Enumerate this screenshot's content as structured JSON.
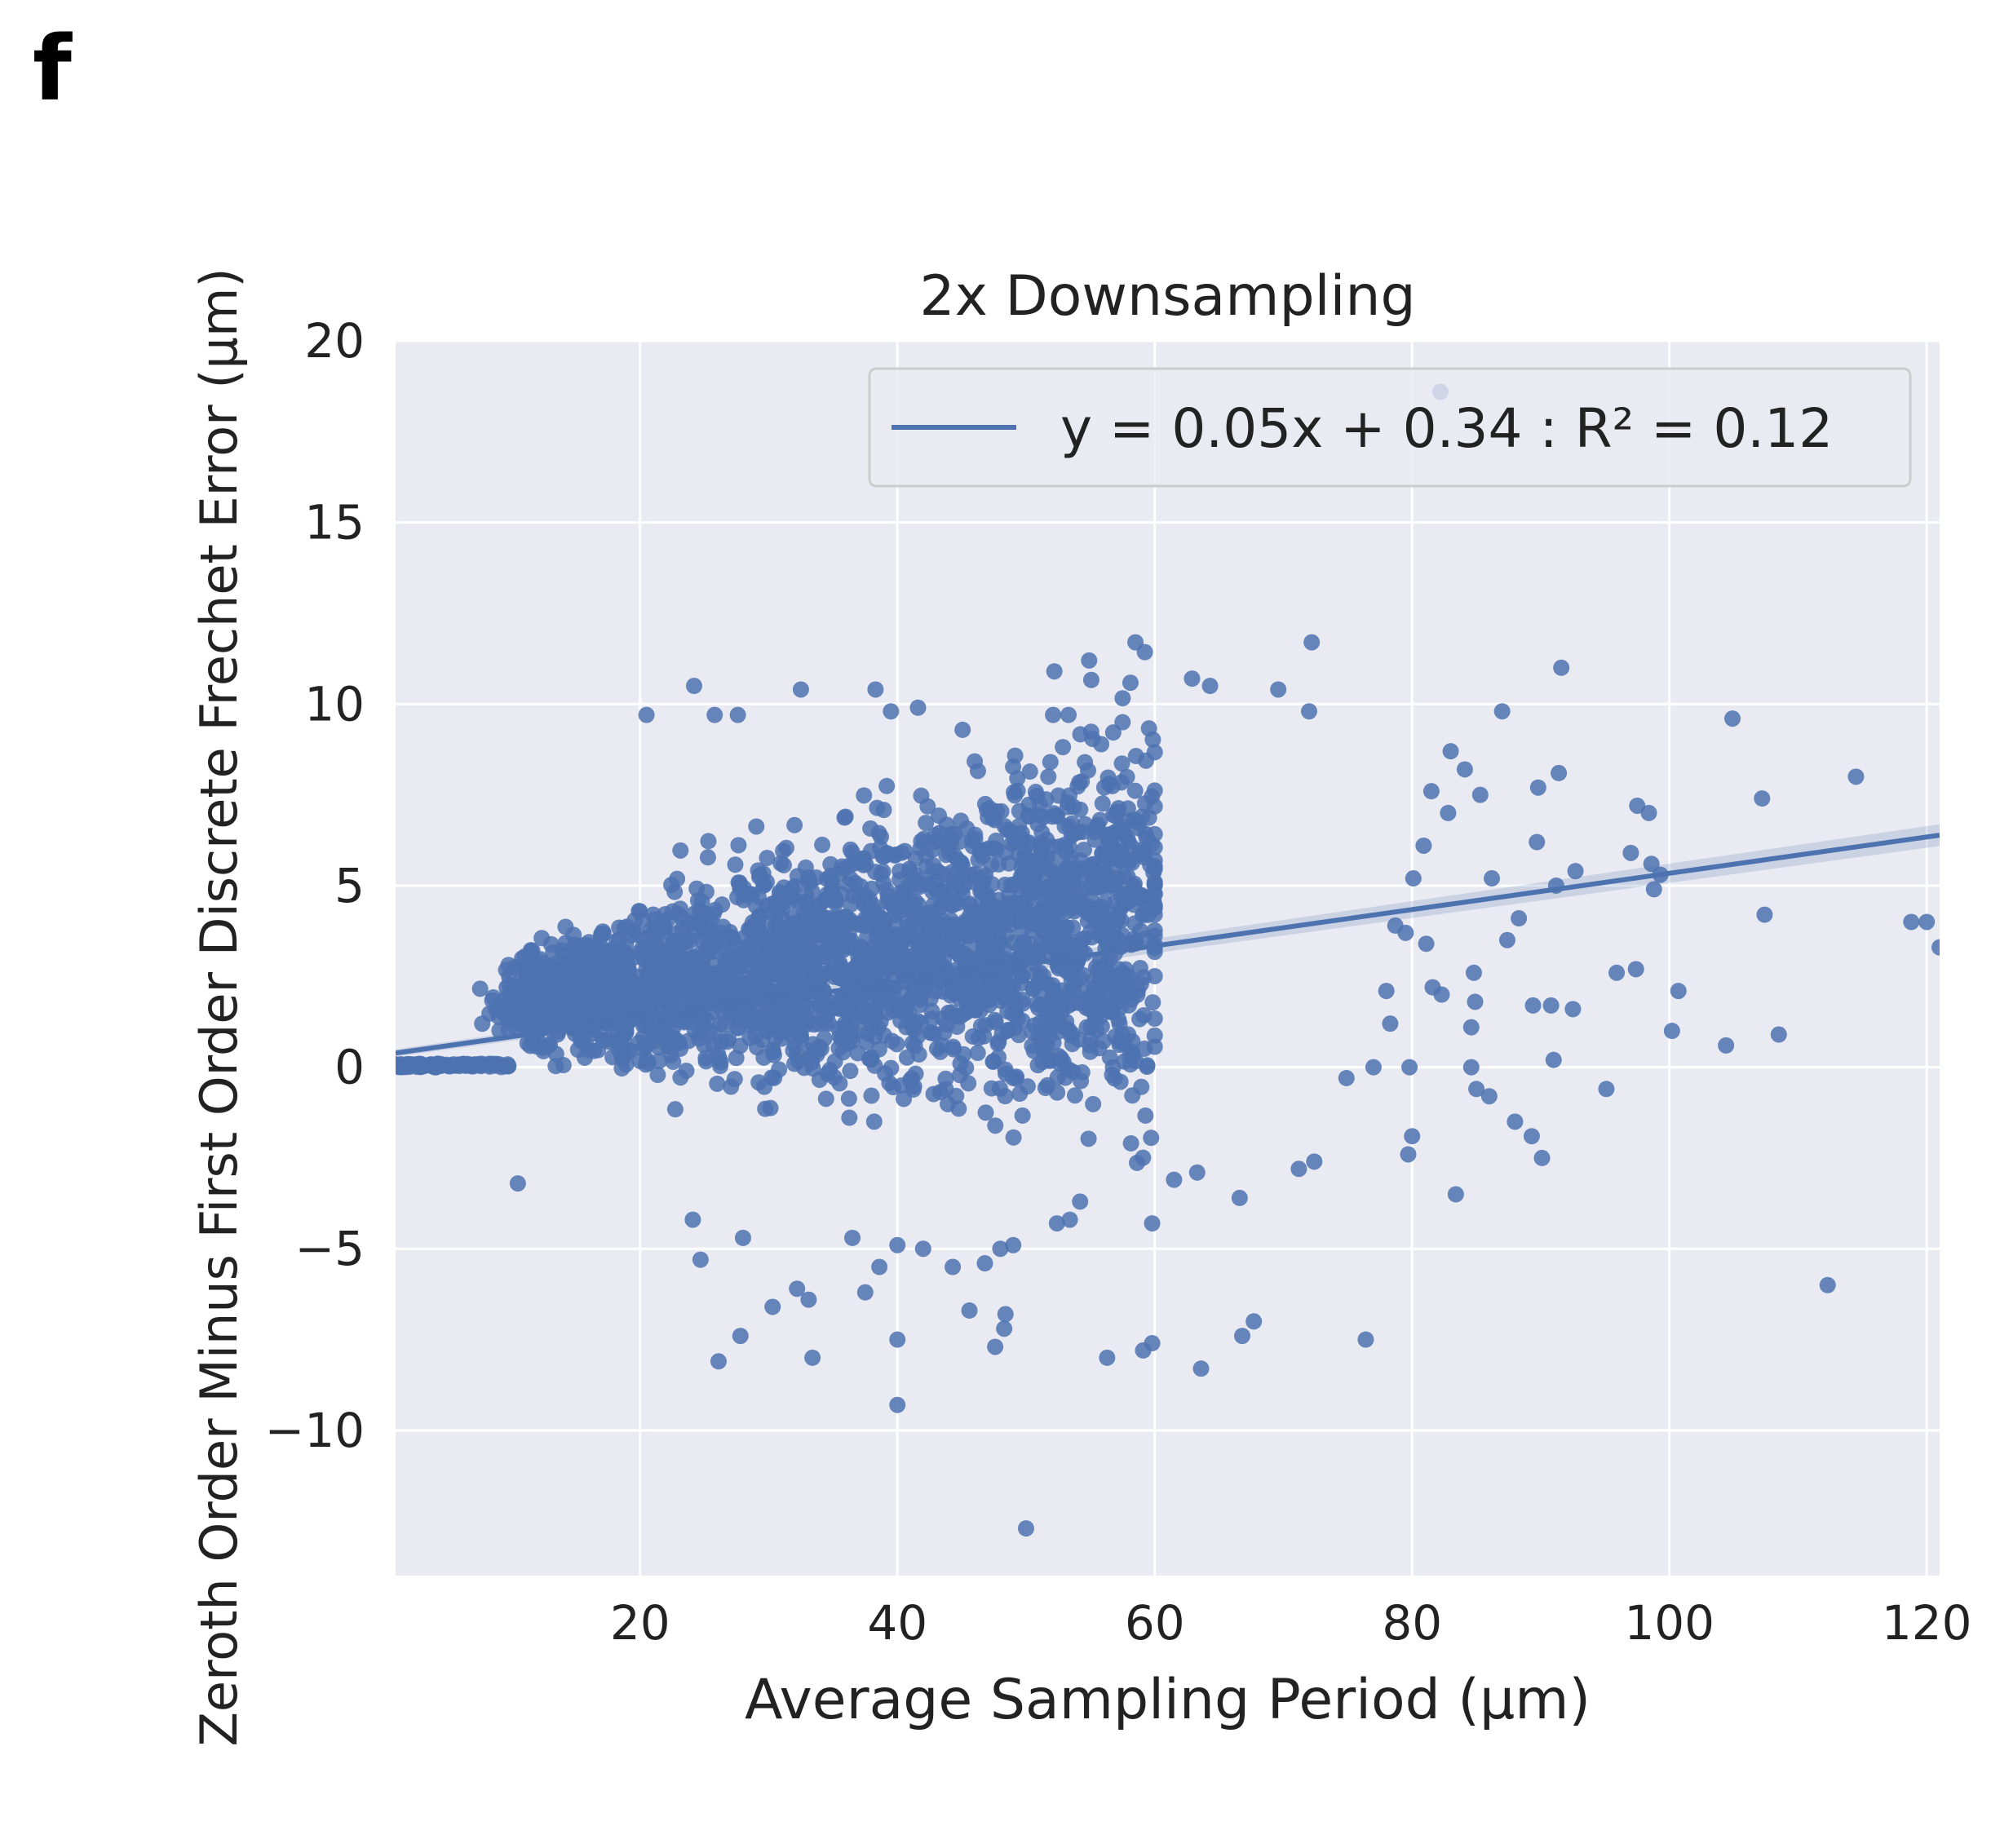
{
  "panel_label": "f",
  "chart_data": {
    "type": "scatter",
    "title": "2x Downsampling",
    "xlabel": "Average Sampling Period (μm)",
    "ylabel": "Zeroth Order Minus First Order Discrete Frechet Error (μm)",
    "xlim": [
      1,
      121
    ],
    "ylim": [
      -14,
      20
    ],
    "xticks": [
      20,
      40,
      60,
      80,
      100,
      120
    ],
    "yticks": [
      -10,
      -5,
      0,
      5,
      10,
      15,
      20
    ],
    "xtick_labels": [
      "20",
      "40",
      "60",
      "80",
      "100",
      "120"
    ],
    "ytick_labels": [
      "−10",
      "−5",
      "0",
      "5",
      "10",
      "15",
      "20"
    ],
    "grid": true,
    "legend_position": "top-right",
    "series": [
      {
        "name": "y = 0.05x + 0.34 : R² = 0.12",
        "kind": "regression",
        "slope": 0.05,
        "intercept": 0.34,
        "x_range": [
          1,
          121
        ]
      }
    ],
    "outlier_points": [
      [
        82.2,
        18.6
      ],
      [
        58.5,
        11.7
      ],
      [
        72.2,
        11.7
      ],
      [
        52.2,
        10.9
      ],
      [
        54.9,
        11.2
      ],
      [
        91.6,
        11.0
      ],
      [
        24.2,
        10.5
      ],
      [
        32.5,
        10.4
      ],
      [
        38.3,
        10.4
      ],
      [
        62.9,
        10.7
      ],
      [
        64.3,
        10.5
      ],
      [
        69.6,
        10.4
      ],
      [
        20.5,
        9.7
      ],
      [
        25.8,
        9.7
      ],
      [
        27.6,
        9.7
      ],
      [
        39.5,
        9.8
      ],
      [
        41.6,
        9.9
      ],
      [
        52.1,
        9.7
      ],
      [
        53.3,
        9.7
      ],
      [
        57.5,
        9.5
      ],
      [
        72.0,
        9.8
      ],
      [
        87.0,
        9.8
      ],
      [
        104.9,
        9.6
      ],
      [
        114.5,
        8.0
      ],
      [
        107.2,
        7.4
      ],
      [
        97.5,
        7.2
      ],
      [
        98.4,
        7.0
      ],
      [
        89.8,
        7.7
      ],
      [
        91.4,
        8.1
      ],
      [
        81.5,
        7.6
      ],
      [
        82.8,
        7.0
      ],
      [
        83.0,
        8.7
      ],
      [
        84.1,
        8.2
      ],
      [
        85.3,
        7.5
      ],
      [
        80.9,
        6.1
      ],
      [
        97.0,
        5.9
      ],
      [
        98.6,
        5.6
      ],
      [
        99.3,
        5.3
      ],
      [
        98.8,
        4.9
      ],
      [
        92.7,
        5.4
      ],
      [
        91.2,
        5.0
      ],
      [
        89.7,
        6.2
      ],
      [
        86.2,
        5.2
      ],
      [
        80.1,
        5.2
      ],
      [
        78.7,
        3.9
      ],
      [
        79.5,
        3.7
      ],
      [
        81.1,
        3.4
      ],
      [
        87.4,
        3.5
      ],
      [
        88.3,
        4.1
      ],
      [
        107.4,
        4.2
      ],
      [
        118.8,
        4.0
      ],
      [
        120.0,
        4.0
      ],
      [
        121.0,
        3.3
      ],
      [
        97.4,
        2.7
      ],
      [
        95.9,
        2.6
      ],
      [
        100.7,
        2.1
      ],
      [
        92.5,
        1.6
      ],
      [
        90.8,
        1.7
      ],
      [
        89.4,
        1.7
      ],
      [
        84.8,
        2.6
      ],
      [
        84.9,
        1.8
      ],
      [
        82.3,
        2.0
      ],
      [
        81.6,
        2.2
      ],
      [
        78.0,
        2.1
      ],
      [
        78.3,
        1.2
      ],
      [
        84.6,
        1.1
      ],
      [
        100.2,
        1.0
      ],
      [
        104.4,
        0.6
      ],
      [
        108.5,
        0.9
      ],
      [
        91.0,
        0.2
      ],
      [
        84.6,
        0.0
      ],
      [
        79.8,
        0.0
      ],
      [
        77.0,
        0.0
      ],
      [
        74.9,
        -0.3
      ],
      [
        85.0,
        -0.6
      ],
      [
        86.0,
        -0.8
      ],
      [
        95.1,
        -0.6
      ],
      [
        88.0,
        -1.5
      ],
      [
        89.3,
        -1.9
      ],
      [
        90.1,
        -2.5
      ],
      [
        79.7,
        -2.4
      ],
      [
        80.0,
        -1.9
      ],
      [
        83.4,
        -3.5
      ],
      [
        72.4,
        -2.6
      ],
      [
        71.2,
        -2.8
      ],
      [
        112.3,
        -6.0
      ],
      [
        76.4,
        -7.5
      ],
      [
        67.7,
        -7.0
      ],
      [
        66.8,
        -7.4
      ],
      [
        63.6,
        -8.3
      ],
      [
        59.8,
        -7.6
      ],
      [
        59.1,
        -7.8
      ],
      [
        56.3,
        -8.0
      ],
      [
        59.8,
        -4.3
      ],
      [
        61.5,
        -3.1
      ],
      [
        63.3,
        -2.9
      ],
      [
        66.6,
        -3.6
      ],
      [
        54.2,
        -3.7
      ],
      [
        53.4,
        -4.2
      ],
      [
        52.4,
        -4.3
      ],
      [
        50.0,
        -12.7
      ],
      [
        40.0,
        -9.3
      ],
      [
        40.0,
        -7.5
      ],
      [
        47.6,
        -7.7
      ],
      [
        48.3,
        -7.2
      ],
      [
        48.4,
        -6.8
      ],
      [
        33.4,
        -8.0
      ],
      [
        27.8,
        -7.4
      ],
      [
        26.1,
        -8.1
      ],
      [
        30.3,
        -6.6
      ],
      [
        33.1,
        -6.4
      ],
      [
        32.2,
        -6.1
      ],
      [
        37.5,
        -6.2
      ],
      [
        40.0,
        -4.9
      ],
      [
        42.0,
        -5.0
      ],
      [
        44.3,
        -5.5
      ],
      [
        45.6,
        -6.7
      ],
      [
        48.0,
        -5.0
      ],
      [
        49.0,
        -4.9
      ],
      [
        46.8,
        -5.4
      ],
      [
        24.7,
        -5.3
      ],
      [
        10.5,
        -3.2
      ],
      [
        24.1,
        -4.2
      ],
      [
        28.0,
        -4.7
      ],
      [
        36.5,
        -4.7
      ],
      [
        38.6,
        -5.5
      ]
    ],
    "dense_cloud": {
      "description_only_for_render": "",
      "core_x_range": [
        5,
        60
      ],
      "core_y_range": [
        -4,
        8
      ]
    }
  }
}
